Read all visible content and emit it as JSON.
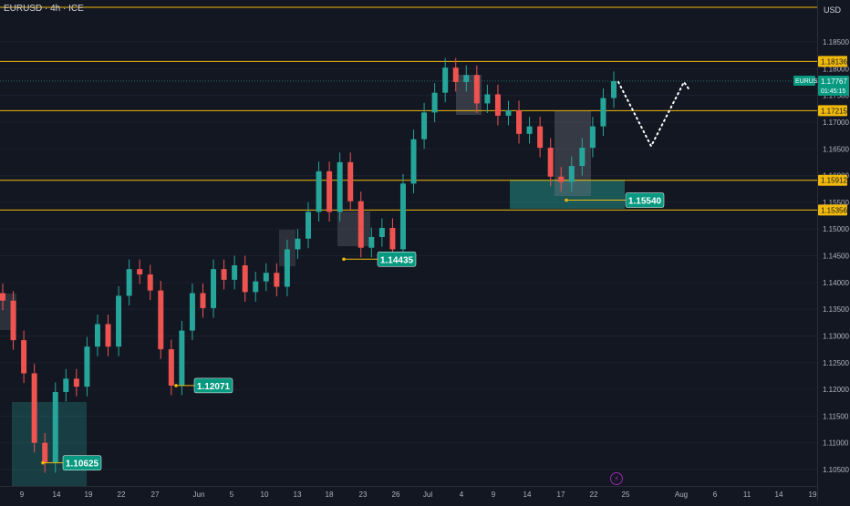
{
  "header": {
    "title": "EURUSD · 4h · ICE"
  },
  "axis": {
    "currency": "USD",
    "countdown": "01:45:15",
    "symbol": "EURUSD"
  },
  "colors": {
    "up": "#26a69a",
    "down": "#ef5350",
    "level": "#f0b90b",
    "zone": "#26a69a",
    "label_bg": "#089981"
  },
  "icons": {
    "flash": "lightning-icon"
  },
  "chart_data": {
    "type": "candlestick",
    "ylim": [
      1.1,
      1.19
    ],
    "y_ticks": [
      "1.18500",
      "1.18000",
      "1.17500",
      "1.17000",
      "1.16500",
      "1.16000",
      "1.15500",
      "1.15000",
      "1.14500",
      "1.14000",
      "1.13500",
      "1.13000",
      "1.12500",
      "1.12000",
      "1.11500",
      "1.11000",
      "1.10500"
    ],
    "x_ticks": [
      "9",
      "14",
      "19",
      "22",
      "27",
      "Jun",
      "5",
      "10",
      "13",
      "18",
      "23",
      "26",
      "Jul",
      "4",
      "9",
      "14",
      "17",
      "22",
      "25",
      "Aug",
      "6",
      "11",
      "14",
      "19"
    ],
    "levels": [
      {
        "value": 1.18136,
        "label": "1.18136"
      },
      {
        "value": 1.17215,
        "label": "1.17215"
      },
      {
        "value": 1.15912,
        "label": "1.15912"
      },
      {
        "value": 1.15356,
        "label": "1.15356"
      }
    ],
    "current_price": {
      "value": 1.17767,
      "label": "1.17767"
    },
    "swing_lows": [
      {
        "value": 1.10625,
        "label": "1.10625"
      },
      {
        "value": 1.12071,
        "label": "1.12071"
      },
      {
        "value": 1.14435,
        "label": "1.14435"
      },
      {
        "value": 1.1554,
        "label": "1.15540"
      }
    ],
    "projection": [
      1.1775,
      1.1655,
      1.1775
    ],
    "series": [
      {
        "name": "",
        "values": [
          [
            1.138,
            1.1366
          ],
          [
            1.1366,
            1.1292
          ],
          [
            1.1292,
            1.123
          ],
          [
            1.123,
            1.11
          ],
          [
            1.11,
            1.1062
          ],
          [
            1.1062,
            1.1195
          ],
          [
            1.1195,
            1.122
          ],
          [
            1.122,
            1.1205
          ],
          [
            1.1205,
            1.128
          ],
          [
            1.128,
            1.1322
          ],
          [
            1.1322,
            1.128
          ],
          [
            1.128,
            1.1375
          ],
          [
            1.1375,
            1.1425
          ],
          [
            1.1425,
            1.1415
          ],
          [
            1.1415,
            1.1385
          ],
          [
            1.1385,
            1.1275
          ],
          [
            1.1275,
            1.1207
          ],
          [
            1.1207,
            1.131
          ],
          [
            1.131,
            1.138
          ],
          [
            1.138,
            1.1352
          ],
          [
            1.1352,
            1.1425
          ],
          [
            1.1425,
            1.1405
          ],
          [
            1.1405,
            1.1432
          ],
          [
            1.1432,
            1.1382
          ],
          [
            1.1382,
            1.1402
          ],
          [
            1.1402,
            1.1418
          ],
          [
            1.1418,
            1.1392
          ],
          [
            1.1392,
            1.1462
          ],
          [
            1.1462,
            1.1482
          ],
          [
            1.1482,
            1.1532
          ],
          [
            1.1532,
            1.1608
          ],
          [
            1.1608,
            1.1532
          ],
          [
            1.1532,
            1.1625
          ],
          [
            1.1625,
            1.1552
          ],
          [
            1.1552,
            1.1465
          ],
          [
            1.1465,
            1.1485
          ],
          [
            1.1485,
            1.1502
          ],
          [
            1.1502,
            1.1462
          ],
          [
            1.1462,
            1.1585
          ],
          [
            1.1585,
            1.1668
          ],
          [
            1.1668,
            1.1718
          ],
          [
            1.1718,
            1.1755
          ],
          [
            1.1755,
            1.1802
          ],
          [
            1.1802,
            1.1775
          ],
          [
            1.1775,
            1.1788
          ],
          [
            1.1788,
            1.1735
          ],
          [
            1.1735,
            1.1752
          ],
          [
            1.1752,
            1.1712
          ],
          [
            1.1712,
            1.1722
          ],
          [
            1.1722,
            1.1678
          ],
          [
            1.1678,
            1.1692
          ],
          [
            1.1692,
            1.1652
          ],
          [
            1.1652,
            1.1598
          ],
          [
            1.1598,
            1.1588
          ],
          [
            1.1588,
            1.1618
          ],
          [
            1.1618,
            1.1652
          ],
          [
            1.1652,
            1.1692
          ],
          [
            1.1692,
            1.1745
          ],
          [
            1.1745,
            1.17767
          ]
        ]
      }
    ]
  }
}
